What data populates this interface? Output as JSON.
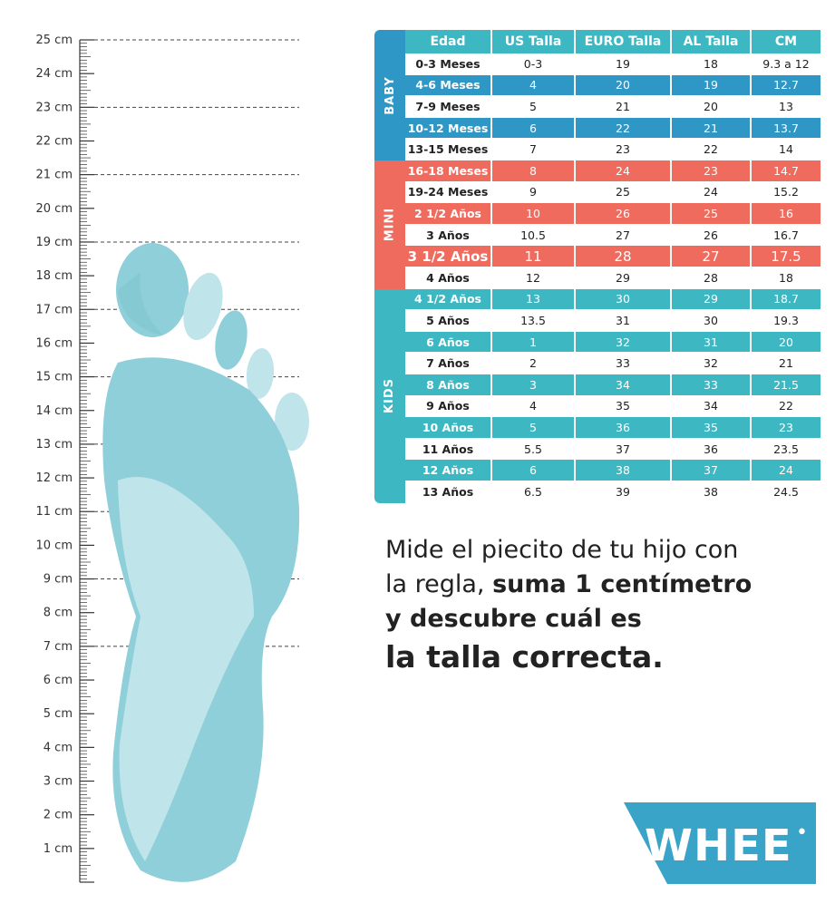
{
  "ruler": {
    "labels": [
      "25 cm",
      "24 cm",
      "23 cm",
      "22 cm",
      "21 cm",
      "20 cm",
      "19 cm",
      "18 cm",
      "17 cm",
      "16 cm",
      "15 cm",
      "14 cm",
      "13 cm",
      "12 cm",
      "11 cm",
      "10 cm",
      "9 cm",
      "8 cm",
      "7 cm",
      "6 cm",
      "5 cm",
      "4 cm",
      "3 cm",
      "2 cm",
      "1 cm"
    ],
    "dashed_at_cm": [
      25,
      23,
      21,
      19,
      17,
      15,
      13,
      11,
      9,
      7
    ]
  },
  "colors": {
    "baby": "#2f97c6",
    "mini": "#ef6b5e",
    "kids": "#3db8c3",
    "foot_dark": "#8ecfd9",
    "foot_light": "#bfe4ea",
    "logo": "#3aa3c8",
    "text": "#222222"
  },
  "table": {
    "headers": [
      "Edad",
      "US Talla",
      "EURO Talla",
      "AL Talla",
      "CM"
    ],
    "groups": [
      {
        "label": "BABY",
        "color": "#2f97c6",
        "rows": [
          [
            "0-3 Meses",
            "0-3",
            "19",
            "18",
            "9.3 a 12"
          ],
          [
            "4-6 Meses",
            "4",
            "20",
            "19",
            "12.7"
          ],
          [
            "7-9 Meses",
            "5",
            "21",
            "20",
            "13"
          ],
          [
            "10-12 Meses",
            "6",
            "22",
            "21",
            "13.7"
          ],
          [
            "13-15 Meses",
            "7",
            "23",
            "22",
            "14"
          ]
        ]
      },
      {
        "label": "MINI",
        "color": "#ef6b5e",
        "rows": [
          [
            "16-18 Meses",
            "8",
            "24",
            "23",
            "14.7"
          ],
          [
            "19-24 Meses",
            "9",
            "25",
            "24",
            "15.2"
          ],
          [
            "2 1/2 Años",
            "10",
            "26",
            "25",
            "16"
          ],
          [
            "3 Años",
            "10.5",
            "27",
            "26",
            "16.7"
          ],
          [
            "3 1/2 Años",
            "11",
            "28",
            "27",
            "17.5"
          ],
          [
            "4 Años",
            "12",
            "29",
            "28",
            "18"
          ]
        ]
      },
      {
        "label": "KIDS",
        "color": "#3db8c3",
        "rows": [
          [
            "4 1/2 Años",
            "13",
            "30",
            "29",
            "18.7"
          ],
          [
            "5 Años",
            "13.5",
            "31",
            "30",
            "19.3"
          ],
          [
            "6 Años",
            "1",
            "32",
            "31",
            "20"
          ],
          [
            "7 Años",
            "2",
            "33",
            "32",
            "21"
          ],
          [
            "8 Años",
            "3",
            "34",
            "33",
            "21.5"
          ],
          [
            "9 Años",
            "4",
            "35",
            "34",
            "22"
          ],
          [
            "10 Años",
            "5",
            "36",
            "35",
            "23"
          ],
          [
            "11 Años",
            "5.5",
            "37",
            "36",
            "23.5"
          ],
          [
            "12 Años",
            "6",
            "38",
            "37",
            "24"
          ],
          [
            "13 Años",
            "6.5",
            "39",
            "38",
            "24.5"
          ]
        ]
      }
    ]
  },
  "instructions": {
    "line1": "Mide el piecito de tu hijo con",
    "line2_regular": "la regla, ",
    "line2_bold": "suma 1 centímetro",
    "line3": "y descubre cuál es",
    "line4": "la talla correcta."
  },
  "logo": {
    "text": "WHEE",
    "mark": "•"
  }
}
